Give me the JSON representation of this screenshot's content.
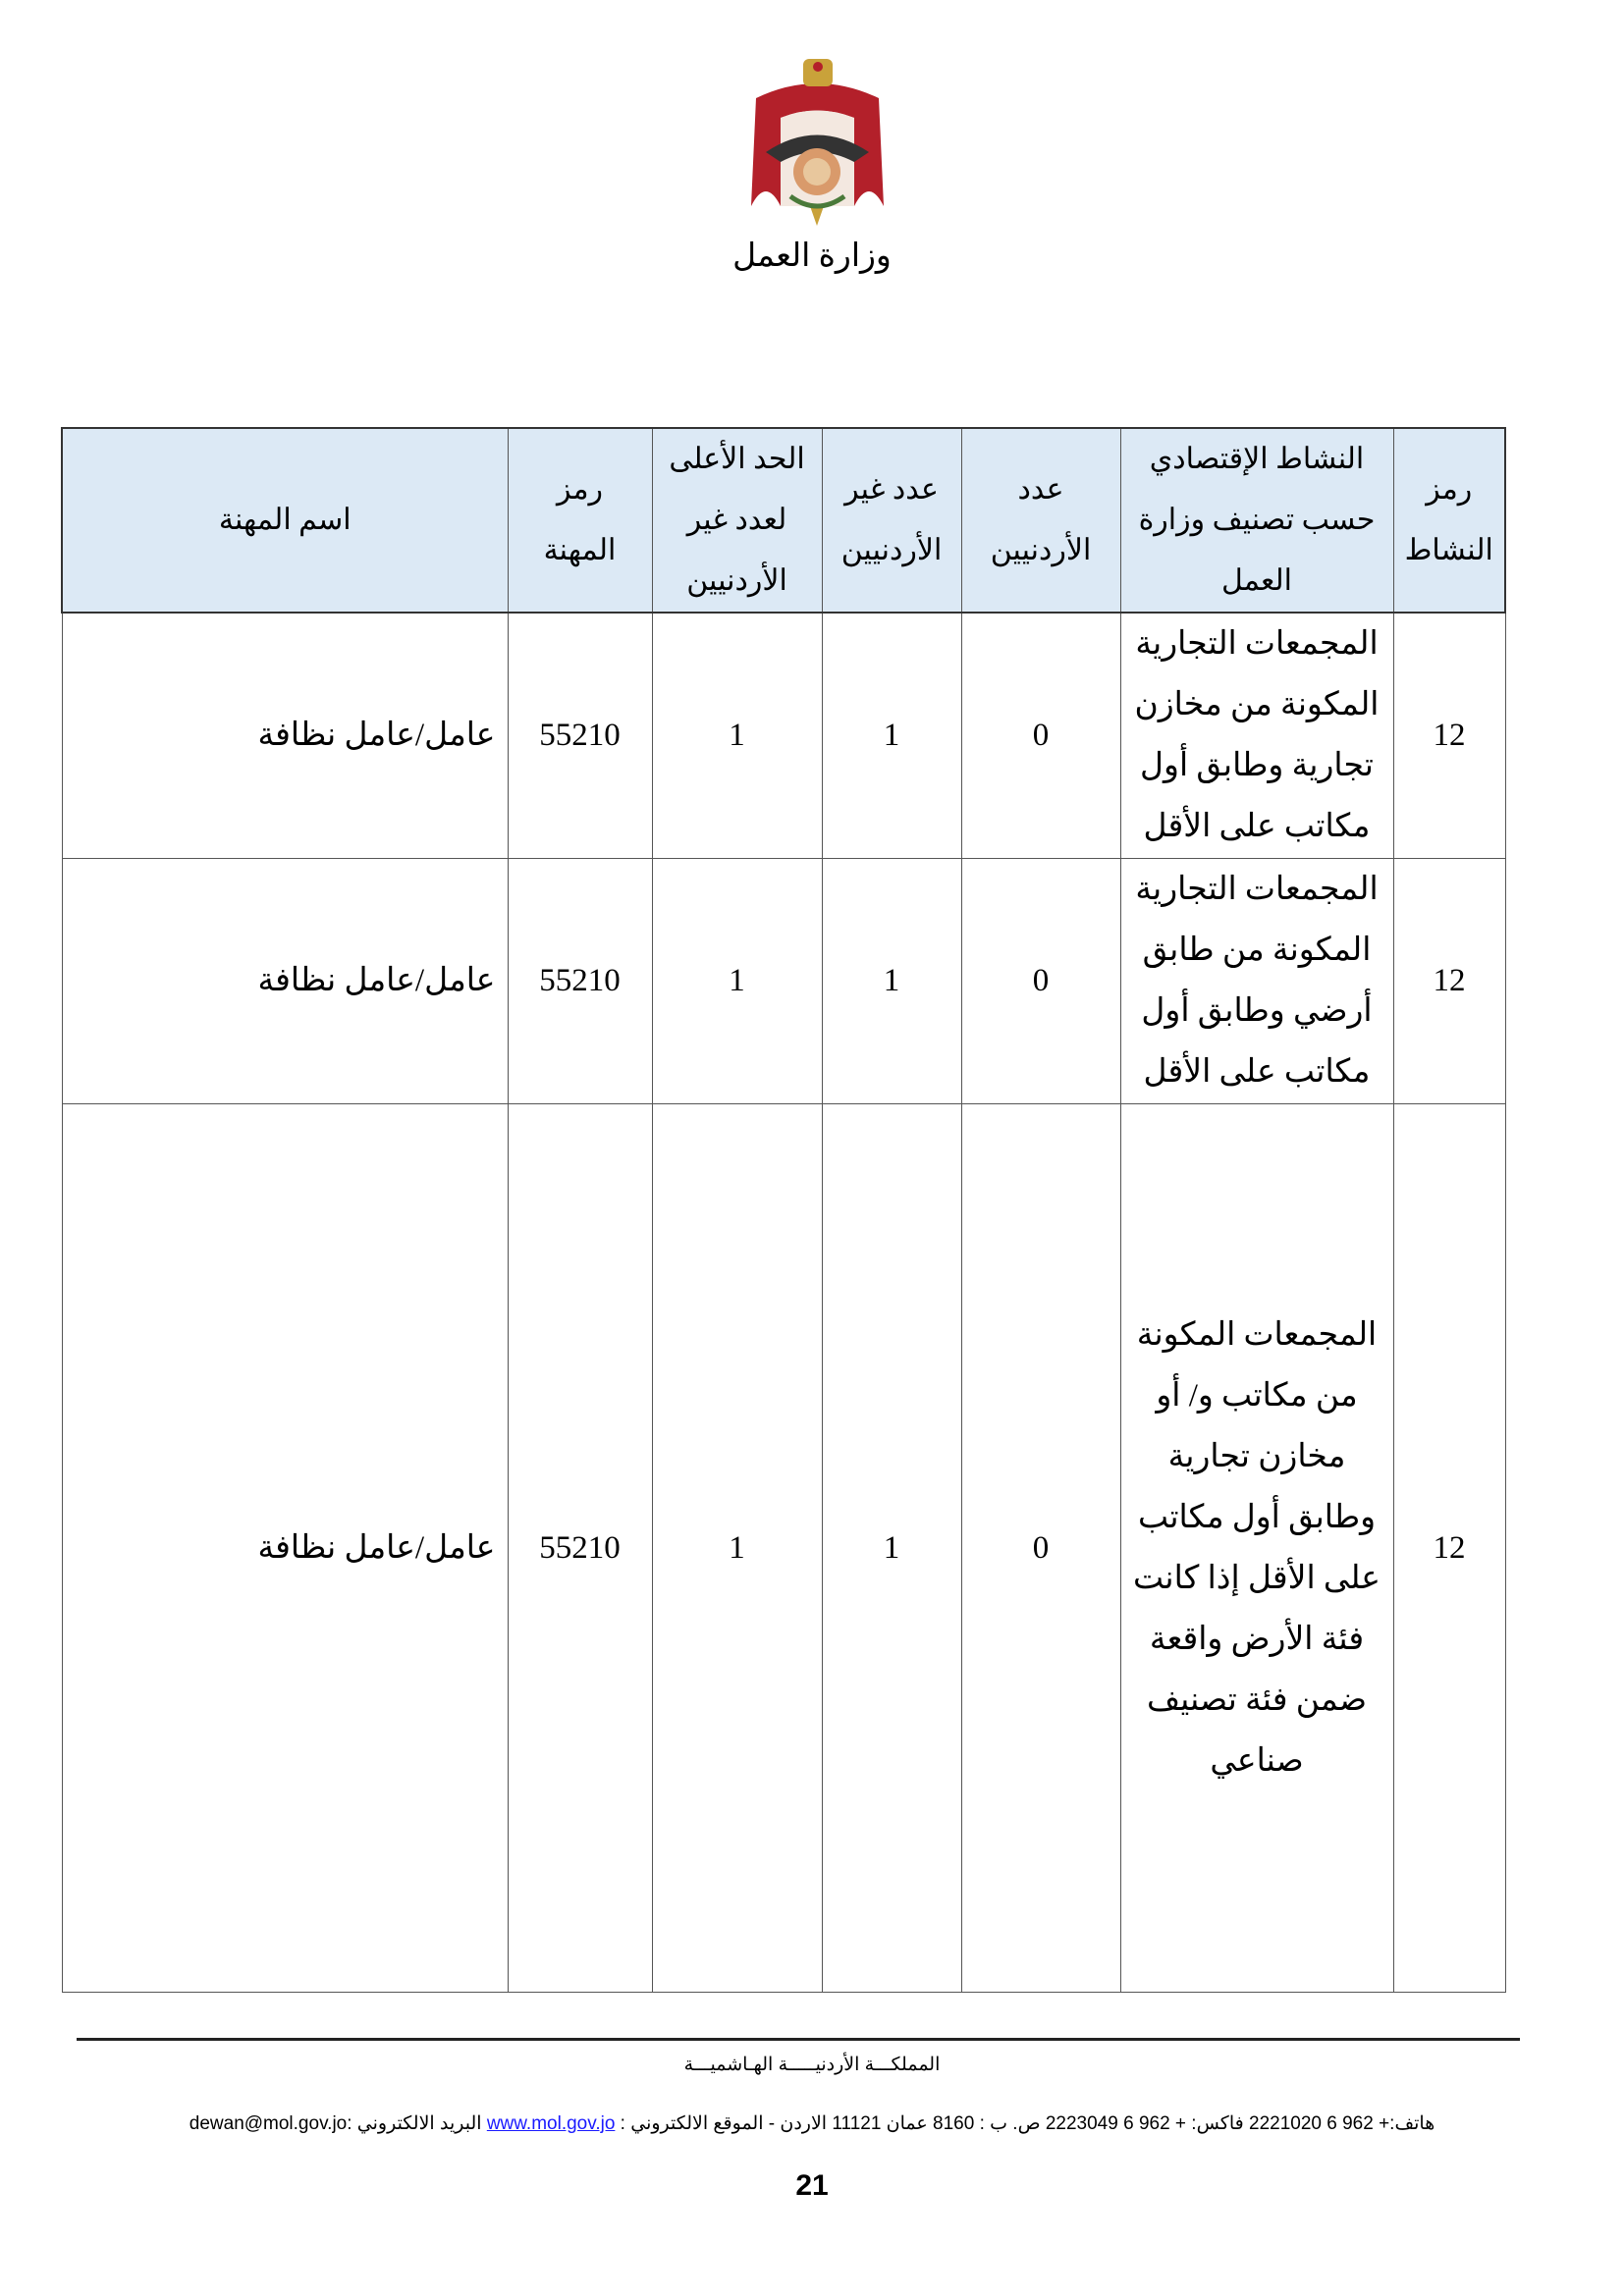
{
  "header": {
    "logo_alt": "Coat of arms of Jordan",
    "ministry": "وزارة العمل"
  },
  "table": {
    "columns": [
      "رمز النشاط",
      "النشاط الإقتصادي حسب تصنيف وزارة العمل",
      "عدد الأردنيين",
      "عدد غير الأردنيين",
      "الحد الأعلى لعدد غير الأردنيين",
      "رمز المهنة",
      "اسم المهنة"
    ],
    "rows": [
      [
        "12",
        "المجمعات التجارية المكونة من مخازن تجارية وطابق أول مكاتب على الأقل",
        "0",
        "1",
        "1",
        "55210",
        "عامل/عامل نظافة"
      ],
      [
        "12",
        "المجمعات التجارية المكونة من طابق أرضي وطابق أول مكاتب على الأقل",
        "0",
        "1",
        "1",
        "55210",
        "عامل/عامل نظافة"
      ],
      [
        "12",
        "المجمعات المكونة من مكاتب و/ أو مخازن تجارية وطابق أول مكاتب على الأقل إذا كانت فئة الأرض واقعة ضمن فئة تصنيف صناعي",
        "0",
        "1",
        "1",
        "55210",
        "عامل/عامل نظافة"
      ]
    ]
  },
  "footer": {
    "kingdom": "المملكـــة الأردنيـــــة الهـاشميـــة",
    "contact_prefix": "هاتف:+ 962 6 2221020   فاكس: + 962 6 2223049 ص. ب : 8160 عمان 11121 الاردن - الموقع الالكتروني : ",
    "website": "www.mol.gov.jo",
    "contact_suffix": " البريد الالكتروني :dewan@mol.gov.jo",
    "page_number": "21"
  }
}
